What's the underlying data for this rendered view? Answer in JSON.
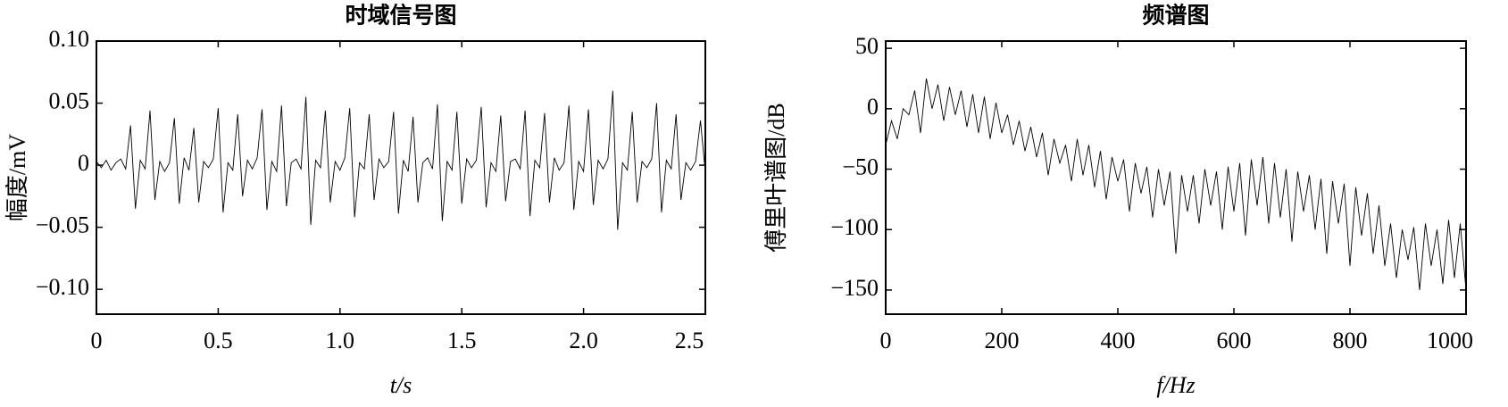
{
  "chart_data": [
    {
      "type": "line",
      "title": "时域信号图",
      "xlabel": "t/s",
      "ylabel": "幅度/mV",
      "x": [
        0,
        0.02,
        0.04,
        0.06,
        0.08,
        0.1,
        0.12,
        0.14,
        0.16,
        0.18,
        0.2,
        0.22,
        0.24,
        0.26,
        0.28,
        0.3,
        0.32,
        0.34,
        0.36,
        0.38,
        0.4,
        0.42,
        0.44,
        0.46,
        0.48,
        0.5,
        0.52,
        0.54,
        0.56,
        0.58,
        0.6,
        0.62,
        0.64,
        0.66,
        0.68,
        0.7,
        0.72,
        0.74,
        0.76,
        0.78,
        0.8,
        0.82,
        0.84,
        0.86,
        0.88,
        0.9,
        0.92,
        0.94,
        0.96,
        0.98,
        1,
        1.02,
        1.04,
        1.06,
        1.08,
        1.1,
        1.12,
        1.14,
        1.16,
        1.18,
        1.2,
        1.22,
        1.24,
        1.26,
        1.28,
        1.3,
        1.32,
        1.34,
        1.36,
        1.38,
        1.4,
        1.42,
        1.44,
        1.46,
        1.48,
        1.5,
        1.52,
        1.54,
        1.56,
        1.58,
        1.6,
        1.62,
        1.64,
        1.66,
        1.68,
        1.7,
        1.72,
        1.74,
        1.76,
        1.78,
        1.8,
        1.82,
        1.84,
        1.86,
        1.88,
        1.9,
        1.92,
        1.94,
        1.96,
        1.98,
        2,
        2.02,
        2.04,
        2.06,
        2.08,
        2.1,
        2.12,
        2.14,
        2.16,
        2.18,
        2.2,
        2.22,
        2.24,
        2.26,
        2.28,
        2.3,
        2.32,
        2.34,
        2.36,
        2.38,
        2.4,
        2.42,
        2.44,
        2.46,
        2.48,
        2.5
      ],
      "series": [
        {
          "color": "#000000",
          "values": [
            0.003,
            -0.002,
            0.004,
            -0.004,
            0.002,
            0.005,
            -0.003,
            0.032,
            -0.035,
            0.004,
            -0.003,
            0.044,
            -0.028,
            0.003,
            -0.005,
            0.002,
            0.038,
            -0.031,
            0.006,
            -0.004,
            0.03,
            -0.03,
            0.003,
            -0.002,
            0.005,
            0.046,
            -0.038,
            0.002,
            -0.004,
            0.041,
            -0.025,
            0.004,
            -0.003,
            0.006,
            0.045,
            -0.036,
            0.003,
            -0.005,
            0.048,
            -0.033,
            0.002,
            0.005,
            -0.003,
            0.055,
            -0.048,
            0.004,
            -0.002,
            0.044,
            -0.03,
            0.003,
            -0.004,
            0.006,
            0.046,
            -0.042,
            0.002,
            -0.003,
            0.041,
            -0.028,
            0.005,
            -0.002,
            0.003,
            0.043,
            -0.039,
            0.004,
            -0.005,
            0.039,
            -0.03,
            0.002,
            0.006,
            -0.003,
            0.049,
            -0.045,
            0.003,
            -0.004,
            0.043,
            -0.031,
            0.005,
            -0.002,
            0.004,
            0.047,
            -0.034,
            0.002,
            -0.005,
            0.04,
            -0.029,
            0.003,
            0.005,
            -0.003,
            0.044,
            -0.041,
            0.004,
            -0.002,
            0.042,
            -0.03,
            0.006,
            -0.004,
            0.002,
            0.048,
            -0.036,
            0.003,
            -0.005,
            0.045,
            -0.032,
            0.004,
            -0.003,
            0.005,
            0.06,
            -0.052,
            0.002,
            -0.004,
            0.043,
            -0.03,
            0.003,
            -0.002,
            0.005,
            0.05,
            -0.038,
            0.004,
            -0.003,
            0.041,
            -0.028,
            0.002,
            -0.004,
            0.003,
            0.036,
            -0.006
          ]
        }
      ],
      "xlim": [
        0,
        2.5
      ],
      "xticks": [
        0,
        0.5,
        {
          "value": 1,
          "label": "1.0"
        },
        1.5,
        {
          "value": 2,
          "label": "2.0"
        },
        2.5
      ],
      "ylim": [
        -0.12,
        0.1
      ],
      "yticks": [
        {
          "value": 0.1,
          "label": "0.10"
        },
        0.05,
        0,
        {
          "value": -0.05,
          "label": "−0.05"
        },
        {
          "value": -0.1,
          "label": "−0.10"
        }
      ]
    },
    {
      "type": "line",
      "title": "频谱图",
      "xlabel": "f/Hz",
      "ylabel": "傅里叶谱图/dB",
      "x": [
        0,
        10,
        20,
        30,
        40,
        50,
        60,
        70,
        80,
        90,
        100,
        110,
        120,
        130,
        140,
        150,
        160,
        170,
        180,
        190,
        200,
        210,
        220,
        230,
        240,
        250,
        260,
        270,
        280,
        290,
        300,
        310,
        320,
        330,
        340,
        350,
        360,
        370,
        380,
        390,
        400,
        410,
        420,
        430,
        440,
        450,
        460,
        470,
        480,
        490,
        500,
        510,
        520,
        530,
        540,
        550,
        560,
        570,
        580,
        590,
        600,
        610,
        620,
        630,
        640,
        650,
        660,
        670,
        680,
        690,
        700,
        710,
        720,
        730,
        740,
        750,
        760,
        770,
        780,
        790,
        800,
        810,
        820,
        830,
        840,
        850,
        860,
        870,
        880,
        890,
        900,
        910,
        920,
        930,
        940,
        950,
        960,
        970,
        980,
        990,
        1000
      ],
      "series": [
        {
          "color": "#000000",
          "values": [
            -30,
            -10,
            -25,
            0,
            -5,
            15,
            -20,
            25,
            0,
            20,
            -10,
            18,
            -5,
            15,
            -15,
            12,
            -20,
            10,
            -25,
            5,
            -20,
            -5,
            -30,
            -10,
            -35,
            -15,
            -40,
            -20,
            -55,
            -25,
            -45,
            -30,
            -60,
            -25,
            -55,
            -30,
            -65,
            -35,
            -75,
            -40,
            -60,
            -42,
            -85,
            -45,
            -70,
            -48,
            -90,
            -50,
            -80,
            -52,
            -120,
            -55,
            -85,
            -55,
            -95,
            -50,
            -80,
            -52,
            -100,
            -48,
            -85,
            -45,
            -105,
            -42,
            -80,
            -40,
            -95,
            -45,
            -90,
            -50,
            -110,
            -52,
            -85,
            -55,
            -100,
            -58,
            -120,
            -60,
            -95,
            -62,
            -130,
            -65,
            -105,
            -70,
            -120,
            -80,
            -130,
            -95,
            -140,
            -100,
            -125,
            -98,
            -150,
            -95,
            -130,
            -100,
            -145,
            -92,
            -140,
            -95,
            -150
          ]
        }
      ],
      "xlim": [
        0,
        1000
      ],
      "xticks": [
        0,
        200,
        400,
        600,
        800,
        1000
      ],
      "ylim": [
        -170,
        56
      ],
      "yticks": [
        50,
        0,
        {
          "value": -50,
          "label": "−50"
        },
        {
          "value": -100,
          "label": "−100"
        },
        {
          "value": -150,
          "label": "−150"
        }
      ]
    }
  ]
}
